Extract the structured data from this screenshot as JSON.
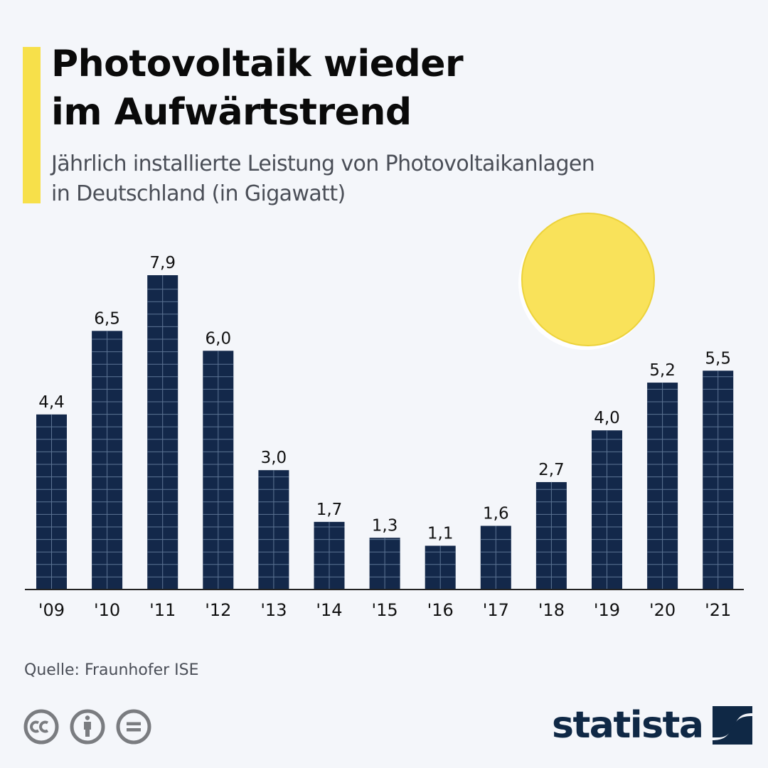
{
  "header": {
    "title_line1": "Photovoltaik wieder",
    "title_line2": "im Aufwärtstrend",
    "subtitle_line1": "Jährlich installierte Leistung von Photovoltaikanlagen",
    "subtitle_line2": "in Deutschland (in Gigawatt)"
  },
  "chart_data": {
    "type": "bar",
    "title": "Photovoltaik wieder im Aufwärtstrend",
    "subtitle": "Jährlich installierte Leistung von Photovoltaikanlagen in Deutschland (in Gigawatt)",
    "categories": [
      "'09",
      "'10",
      "'11",
      "'12",
      "'13",
      "'14",
      "'15",
      "'16",
      "'17",
      "'18",
      "'19",
      "'20",
      "'21"
    ],
    "values": [
      4.4,
      6.5,
      7.9,
      6.0,
      3.0,
      1.7,
      1.3,
      1.1,
      1.6,
      2.7,
      4.0,
      5.2,
      5.5
    ],
    "value_labels": [
      "4,4",
      "6,5",
      "7,9",
      "6,0",
      "3,0",
      "1,7",
      "1,3",
      "1,1",
      "1,6",
      "2,7",
      "4,0",
      "5,2",
      "5,5"
    ],
    "xlabel": "",
    "ylabel": "Gigawatt",
    "ylim": [
      0,
      7.9
    ],
    "grid": false,
    "legend": "none"
  },
  "footer": {
    "source": "Quelle: Fraunhofer ISE",
    "license_icons": [
      "cc-icon",
      "attribution-icon",
      "no-derivatives-icon"
    ],
    "logo_text": "statista"
  },
  "colors": {
    "background": "#f4f6fa",
    "accent": "#f7e04a",
    "bar": "#13284a",
    "bar_grid": "#5d7494",
    "sun": "#f9e25a",
    "text": "#0a0a0a",
    "muted_text": "#4a4e57",
    "icon_gray": "#7a7c80",
    "logo": "#0f2845"
  }
}
